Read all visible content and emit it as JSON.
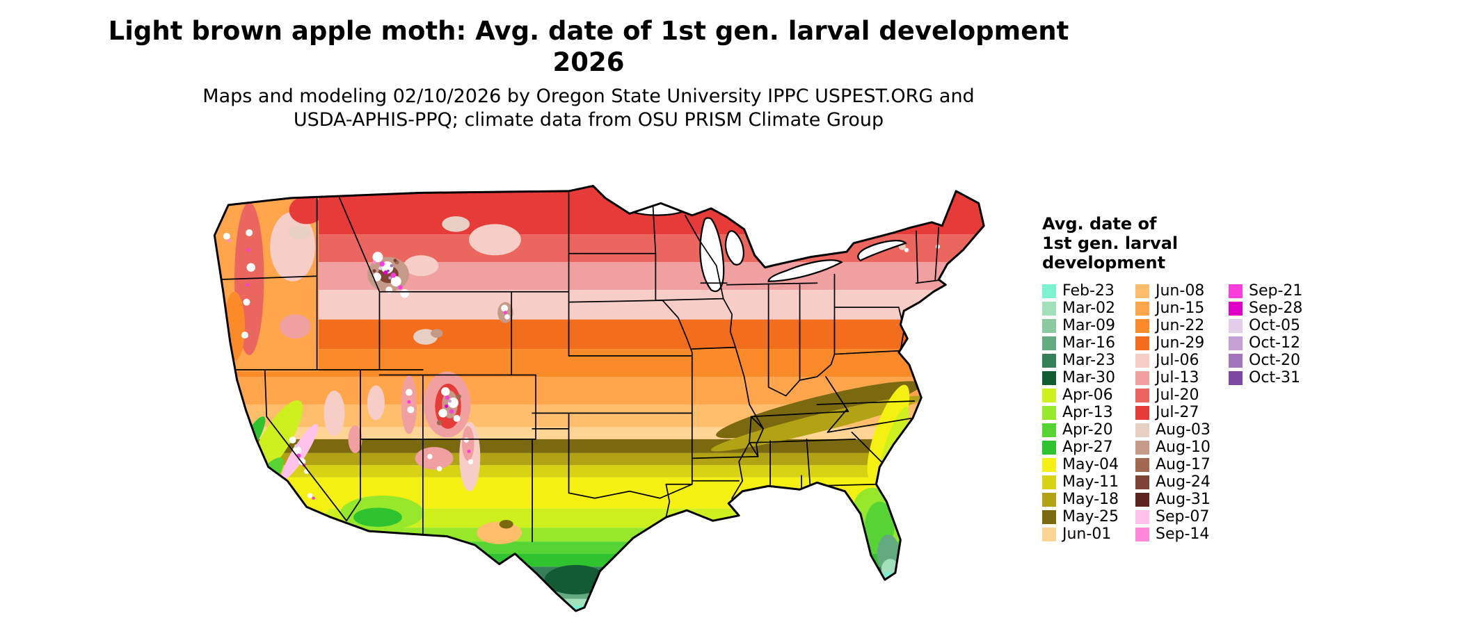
{
  "title": {
    "line1": "Light brown apple moth: Avg. date of 1st gen. larval development",
    "line2": "2026"
  },
  "subtitle": {
    "line1": "Maps and modeling 02/10/2026 by Oregon State University IPPC USPEST.ORG and",
    "line2": "USDA-APHIS-PPQ; climate data from OSU PRISM Climate Group"
  },
  "legend": {
    "title_lines": [
      "Avg. date of",
      "1st gen. larval",
      "development"
    ],
    "columns": [
      [
        {
          "label": "Feb-23",
          "color": "#7df2d2"
        },
        {
          "label": "Mar-02",
          "color": "#a2e0bb"
        },
        {
          "label": "Mar-09",
          "color": "#8cc9a1"
        },
        {
          "label": "Mar-16",
          "color": "#63aa80"
        },
        {
          "label": "Mar-23",
          "color": "#35805a"
        },
        {
          "label": "Mar-30",
          "color": "#135c33"
        },
        {
          "label": "Apr-06",
          "color": "#cdf01e"
        },
        {
          "label": "Apr-13",
          "color": "#97e82b"
        },
        {
          "label": "Apr-20",
          "color": "#55d434"
        },
        {
          "label": "Apr-27",
          "color": "#2fc42f"
        },
        {
          "label": "May-04",
          "color": "#f4f112"
        },
        {
          "label": "May-11",
          "color": "#d8d214"
        },
        {
          "label": "May-18",
          "color": "#b2a315"
        },
        {
          "label": "May-25",
          "color": "#7b690f"
        },
        {
          "label": "Jun-01",
          "color": "#ffd596"
        }
      ],
      [
        {
          "label": "Jun-08",
          "color": "#ffbe6b"
        },
        {
          "label": "Jun-15",
          "color": "#ffa64d"
        },
        {
          "label": "Jun-22",
          "color": "#fb8b28"
        },
        {
          "label": "Jun-29",
          "color": "#f26e1d"
        },
        {
          "label": "Jul-06",
          "color": "#f7cdc8"
        },
        {
          "label": "Jul-13",
          "color": "#f0a0a0"
        },
        {
          "label": "Jul-20",
          "color": "#ea665e"
        },
        {
          "label": "Jul-27",
          "color": "#e63b38"
        },
        {
          "label": "Aug-03",
          "color": "#e8cfc4"
        },
        {
          "label": "Aug-10",
          "color": "#c69a88"
        },
        {
          "label": "Aug-17",
          "color": "#a26852"
        },
        {
          "label": "Aug-24",
          "color": "#7e4334"
        },
        {
          "label": "Aug-31",
          "color": "#5c241e"
        },
        {
          "label": "Sep-07",
          "color": "#ffc2ea"
        },
        {
          "label": "Sep-14",
          "color": "#ff86d8"
        }
      ],
      [
        {
          "label": "Sep-21",
          "color": "#fb3ddd"
        },
        {
          "label": "Sep-28",
          "color": "#df00c8"
        },
        {
          "label": "Oct-05",
          "color": "#e3cde8"
        },
        {
          "label": "Oct-12",
          "color": "#c5a0d6"
        },
        {
          "label": "Oct-20",
          "color": "#a273be"
        },
        {
          "label": "Oct-31",
          "color": "#7d48a2"
        }
      ]
    ]
  },
  "map": {
    "region": "Contiguous United States",
    "water_color": "#ffffff",
    "snow_color": "#ffffff",
    "border_color": "#000000",
    "background_color": "#ffffff"
  }
}
